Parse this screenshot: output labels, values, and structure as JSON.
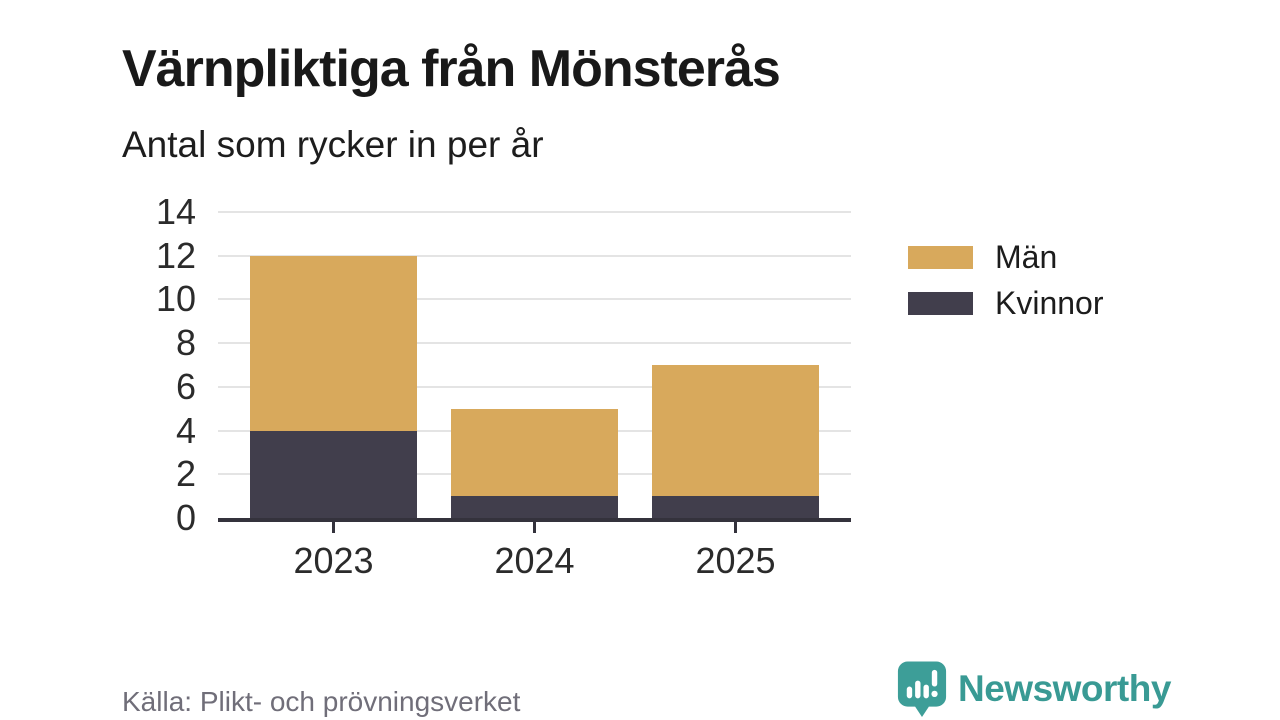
{
  "header": {
    "title": "Värnpliktiga från Mönsterås",
    "subtitle": "Antal som rycker in per år"
  },
  "chart_data": {
    "type": "bar",
    "stacked": true,
    "stack_order": "bottom-to-top",
    "title": "Värnpliktiga från Mönsterås",
    "subtitle": "Antal som rycker in per år",
    "categories": [
      "2023",
      "2024",
      "2025"
    ],
    "series": [
      {
        "name": "Kvinnor",
        "color": "#413e4c",
        "values": [
          4,
          1,
          1
        ]
      },
      {
        "name": "Män",
        "color": "#d8a95c",
        "values": [
          8,
          4,
          6
        ]
      }
    ],
    "totals": [
      12,
      5,
      7
    ],
    "xlabel": "",
    "ylabel": "",
    "ylim": [
      0,
      14
    ],
    "yticks": [
      0,
      2,
      4,
      6,
      8,
      10,
      12,
      14
    ],
    "grid": true,
    "legend_position": "right"
  },
  "legend": {
    "items": [
      {
        "label": "Män",
        "color": "#d8a95c"
      },
      {
        "label": "Kvinnor",
        "color": "#413e4c"
      }
    ]
  },
  "footer": {
    "source": "Källa: Plikt- och prövningsverket",
    "brand": "Newsworthy",
    "brand_color": "#399a94",
    "logo_icon": "bar-chart-speech-bubble"
  }
}
